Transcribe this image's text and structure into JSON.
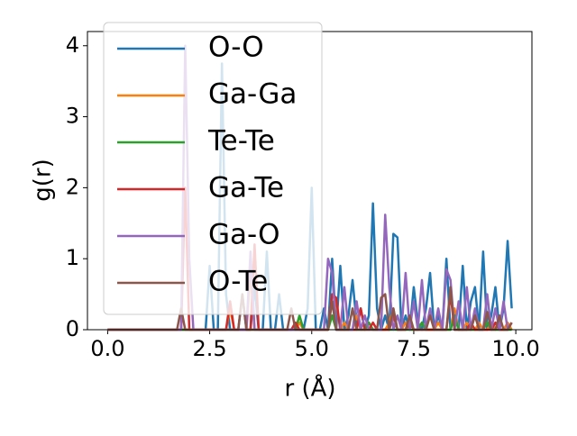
{
  "chart_data": {
    "type": "line",
    "xlabel": "r (Å)",
    "ylabel": "g(r)",
    "x": [
      0,
      0.1,
      0.2,
      0.3,
      0.4,
      0.5,
      0.6,
      0.7,
      0.8,
      0.9,
      1,
      1.1,
      1.2,
      1.3,
      1.4,
      1.5,
      1.6,
      1.7,
      1.8,
      1.9,
      2,
      2.1,
      2.2,
      2.3,
      2.4,
      2.5,
      2.6,
      2.7,
      2.8,
      2.9,
      3,
      3.1,
      3.2,
      3.3,
      3.4,
      3.5,
      3.6,
      3.7,
      3.8,
      3.9,
      4,
      4.1,
      4.2,
      4.3,
      4.4,
      4.5,
      4.6,
      4.7,
      4.8,
      4.9,
      5,
      5.1,
      5.2,
      5.3,
      5.4,
      5.5,
      5.6,
      5.7,
      5.8,
      5.9,
      6,
      6.1,
      6.2,
      6.3,
      6.4,
      6.5,
      6.6,
      6.7,
      6.8,
      6.9,
      7,
      7.1,
      7.2,
      7.3,
      7.4,
      7.5,
      7.6,
      7.7,
      7.8,
      7.9,
      8,
      8.1,
      8.2,
      8.3,
      8.4,
      8.5,
      8.6,
      8.7,
      8.8,
      8.9,
      9,
      9.1,
      9.2,
      9.3,
      9.4,
      9.5,
      9.6,
      9.7,
      9.8,
      9.9
    ],
    "series": [
      {
        "name": "O-O",
        "color": "#1f77b4",
        "values": [
          0,
          0,
          0,
          0,
          0,
          0,
          0,
          0,
          0,
          0,
          0,
          0,
          0,
          0,
          0,
          0,
          0,
          0,
          0,
          0,
          0,
          0,
          0,
          0,
          0,
          0.9,
          0,
          0,
          3.75,
          0.5,
          0,
          0,
          0,
          0.5,
          0,
          0,
          0.6,
          0,
          0,
          1.1,
          0,
          0,
          0.5,
          0,
          0,
          0,
          0,
          0,
          0,
          0.3,
          2.0,
          0,
          0,
          0.3,
          0,
          1.0,
          0,
          0.9,
          0,
          0.2,
          0.7,
          0.1,
          0.3,
          0,
          0.2,
          1.78,
          0.3,
          0,
          0.2,
          0,
          1.35,
          1.3,
          0,
          0.2,
          0,
          0.6,
          0.1,
          0,
          0.3,
          0.8,
          0,
          0.2,
          0,
          1.0,
          0,
          0.2,
          0,
          0.9,
          0,
          0.4,
          0.6,
          0,
          1.1,
          0,
          0.2,
          0.6,
          0,
          0.3,
          1.25,
          0.3
        ]
      },
      {
        "name": "Ga-Ga",
        "color": "#ff7f0e",
        "values": [
          0,
          0,
          0,
          0,
          0,
          0,
          0,
          0,
          0,
          0,
          0,
          0,
          0,
          0,
          0,
          0,
          0,
          0,
          0,
          0,
          0,
          0,
          0,
          0,
          0,
          0,
          0,
          0,
          0,
          0,
          0.3,
          0,
          0,
          0,
          0,
          0.8,
          0,
          0,
          0,
          0,
          0,
          0,
          0,
          0,
          0,
          0,
          0,
          0.1,
          0,
          0,
          0,
          0,
          0,
          0,
          0,
          0.5,
          0.4,
          0,
          0.1,
          0,
          0,
          0.2,
          0,
          0,
          0.1,
          0,
          0,
          0,
          0,
          0.1,
          0.3,
          0,
          0,
          0.1,
          0,
          0,
          0,
          0.1,
          0,
          0,
          0,
          0.1,
          0,
          0,
          0,
          0.3,
          0,
          0,
          0.1,
          0,
          0,
          0.1,
          0,
          0,
          0.1,
          0,
          0,
          0,
          0.1,
          0
        ]
      },
      {
        "name": "Te-Te",
        "color": "#2ca02c",
        "values": [
          0,
          0,
          0,
          0,
          0,
          0,
          0,
          0,
          0,
          0,
          0,
          0,
          0,
          0,
          0,
          0,
          0,
          0,
          0,
          0,
          0,
          0,
          0,
          0,
          0,
          0,
          0,
          0,
          0,
          0,
          0,
          0,
          0,
          0,
          0,
          0,
          0,
          0,
          0,
          0,
          0,
          0,
          0,
          0,
          0,
          0,
          0,
          0.2,
          0,
          0,
          0,
          0,
          0,
          0,
          0,
          0.2,
          0,
          0,
          0,
          0,
          0,
          0,
          0,
          0,
          0.1,
          0,
          0,
          0,
          0,
          0,
          0,
          0,
          0,
          0,
          0,
          0,
          0,
          0.1,
          0,
          0,
          0,
          0,
          0,
          0,
          0,
          0.2,
          0,
          0,
          0,
          0,
          0,
          0,
          0,
          0.1,
          0,
          0,
          0,
          0,
          0,
          0
        ]
      },
      {
        "name": "Ga-Te",
        "color": "#d62728",
        "values": [
          0,
          0,
          0,
          0,
          0,
          0,
          0,
          0,
          0,
          0,
          0,
          0,
          0,
          0,
          0,
          0,
          0,
          0,
          0,
          2.0,
          0,
          0,
          0,
          0,
          0,
          0,
          0,
          0,
          0,
          0,
          0.4,
          0,
          0,
          0,
          0,
          0,
          1.2,
          0,
          0,
          0,
          0,
          0,
          0,
          0,
          0,
          0,
          0.1,
          0,
          0,
          0,
          0,
          0,
          0,
          0,
          0,
          0.5,
          0.45,
          0,
          0,
          0,
          0,
          0,
          0.3,
          0,
          0,
          0.1,
          0,
          0,
          0,
          0,
          0.2,
          0,
          0,
          0,
          0.1,
          0,
          0,
          0,
          0,
          0,
          0,
          0,
          0,
          0,
          0.5,
          0,
          0,
          0,
          0,
          0.1,
          0,
          0,
          0,
          0,
          0,
          0.1,
          0,
          0,
          0,
          0.1
        ]
      },
      {
        "name": "Ga-O",
        "color": "#9467bd",
        "values": [
          0,
          0,
          0,
          0,
          0,
          0,
          0,
          0,
          0,
          0,
          0,
          0,
          0,
          0,
          0,
          0,
          0,
          0,
          0,
          4.0,
          1.0,
          0,
          0,
          0,
          0,
          0,
          0,
          0,
          0,
          0,
          0,
          0,
          0,
          0,
          0,
          1.1,
          0,
          0,
          0,
          0,
          0,
          0,
          0,
          0,
          0,
          0,
          0,
          0,
          0,
          0,
          0,
          0,
          0,
          0,
          1.0,
          0.8,
          0,
          0,
          0.6,
          0,
          0,
          0.4,
          0,
          0.2,
          0,
          0,
          0,
          0,
          1.62,
          0.6,
          0,
          0.2,
          0,
          0.8,
          0,
          0.4,
          0,
          0.7,
          0,
          0.3,
          0,
          0.3,
          0,
          0.85,
          0.7,
          0,
          0.4,
          0,
          0.6,
          0,
          0.3,
          0,
          0,
          0.5,
          0,
          0.3,
          0,
          0.4,
          0,
          0.1
        ]
      },
      {
        "name": "O-Te",
        "color": "#8c564b",
        "values": [
          0,
          0,
          0,
          0,
          0,
          0,
          0,
          0,
          0,
          0,
          0,
          0,
          0,
          0,
          0,
          0,
          0,
          0,
          0.3,
          0,
          0,
          0,
          0,
          0,
          0,
          0,
          0,
          0,
          0,
          0,
          0,
          0,
          0,
          0.5,
          0,
          0,
          0,
          0,
          0,
          0,
          0,
          0,
          0,
          0,
          0,
          0.3,
          0,
          0,
          0,
          0,
          0,
          0,
          0,
          0,
          0,
          0.4,
          0,
          0,
          0,
          0,
          0.3,
          0,
          0,
          0,
          0,
          0,
          0,
          0.45,
          0.5,
          0,
          0.3,
          0,
          0,
          0,
          0.2,
          0,
          0,
          0,
          0,
          0.2,
          0,
          0,
          0,
          0,
          0.6,
          0,
          0,
          0,
          0,
          0,
          0.2,
          0,
          0,
          0.25,
          0,
          0,
          0.2,
          0,
          0,
          0.1
        ]
      }
    ],
    "xlim": [
      -0.495,
      10.395
    ],
    "ylim": [
      0,
      4.2
    ],
    "xticks": [
      {
        "value": 0,
        "label": "0.0"
      },
      2.5,
      {
        "value": 5,
        "label": "5.0"
      },
      7.5,
      {
        "value": 10,
        "label": "10.0"
      }
    ],
    "yticks": [
      0,
      1,
      2,
      3,
      4
    ],
    "legend": "upper left",
    "grid": false
  }
}
